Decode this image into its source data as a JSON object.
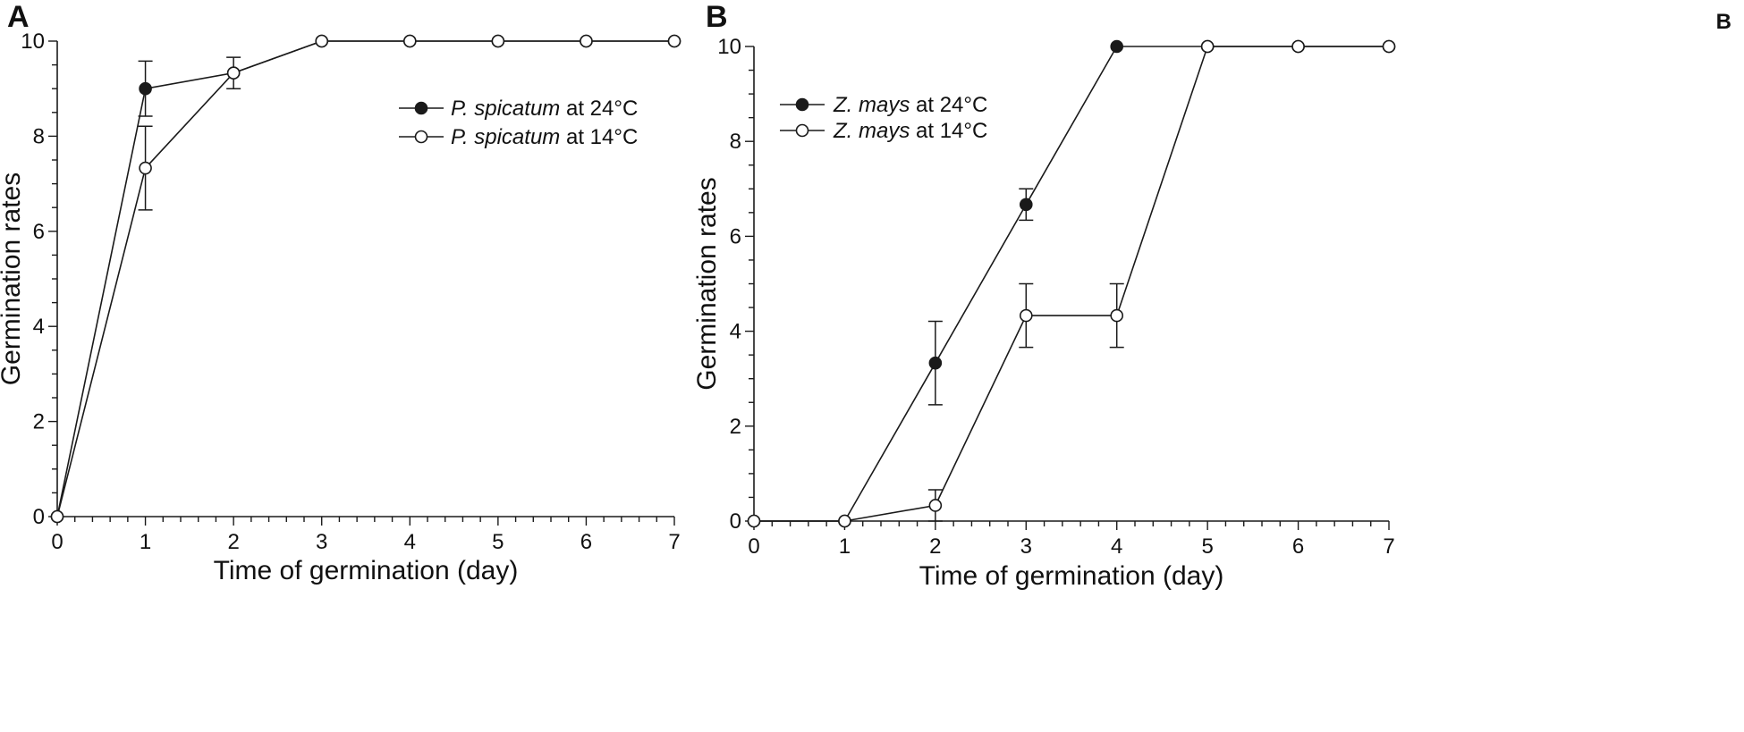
{
  "chart_data": [
    {
      "panel": "A",
      "type": "line",
      "xlabel": "Time of germination (day)",
      "ylabel": "Germination rates",
      "xlim": [
        0,
        7
      ],
      "ylim": [
        0,
        10
      ],
      "x_ticks": [
        "0",
        "1",
        "2",
        "3",
        "4",
        "5",
        "6",
        "7"
      ],
      "y_ticks": [
        "0",
        "2",
        "4",
        "6",
        "8",
        "10"
      ],
      "legend_position": "top-right",
      "series": [
        {
          "legend_species": "P. spicatum",
          "legend_suffix": "at 24°C",
          "marker": "filled-circle",
          "x": [
            0,
            1,
            2,
            3,
            4,
            5,
            6,
            7
          ],
          "y": [
            0,
            9.0,
            9.33,
            10,
            10,
            10,
            10,
            10
          ],
          "error": [
            0,
            0.58,
            0.33,
            0,
            0,
            0,
            0,
            0
          ]
        },
        {
          "legend_species": "P. spicatum",
          "legend_suffix": "at 14°C",
          "marker": "open-circle",
          "x": [
            0,
            1,
            2,
            3,
            4,
            5,
            6,
            7
          ],
          "y": [
            0,
            7.33,
            9.33,
            10,
            10,
            10,
            10,
            10
          ],
          "error": [
            0,
            0.88,
            0,
            0,
            0,
            0,
            0,
            0
          ]
        }
      ]
    },
    {
      "panel": "B",
      "corner_label": "B",
      "type": "line",
      "xlabel": "Time of germination (day)",
      "ylabel": "Germination rates",
      "xlim": [
        0,
        7
      ],
      "ylim": [
        0,
        10
      ],
      "x_ticks": [
        "0",
        "1",
        "2",
        "3",
        "4",
        "5",
        "6",
        "7"
      ],
      "y_ticks": [
        "0",
        "2",
        "4",
        "6",
        "8",
        "10"
      ],
      "legend_position": "top-left",
      "series": [
        {
          "legend_species": "Z. mays",
          "legend_suffix": "at 24°C",
          "marker": "filled-circle",
          "x": [
            0,
            1,
            2,
            3,
            4,
            5,
            6,
            7
          ],
          "y": [
            0,
            0,
            3.33,
            6.67,
            10,
            10,
            10,
            10
          ],
          "error": [
            0,
            0,
            0.88,
            0.33,
            0,
            0,
            0,
            0
          ]
        },
        {
          "legend_species": "Z. mays",
          "legend_suffix": "at 14°C",
          "marker": "open-circle",
          "x": [
            0,
            1,
            2,
            3,
            4,
            5,
            6,
            7
          ],
          "y": [
            0,
            0,
            0.33,
            4.33,
            4.33,
            10,
            10,
            10
          ],
          "error": [
            0,
            0,
            0.33,
            0.67,
            0.67,
            0,
            0,
            0
          ]
        }
      ]
    }
  ]
}
